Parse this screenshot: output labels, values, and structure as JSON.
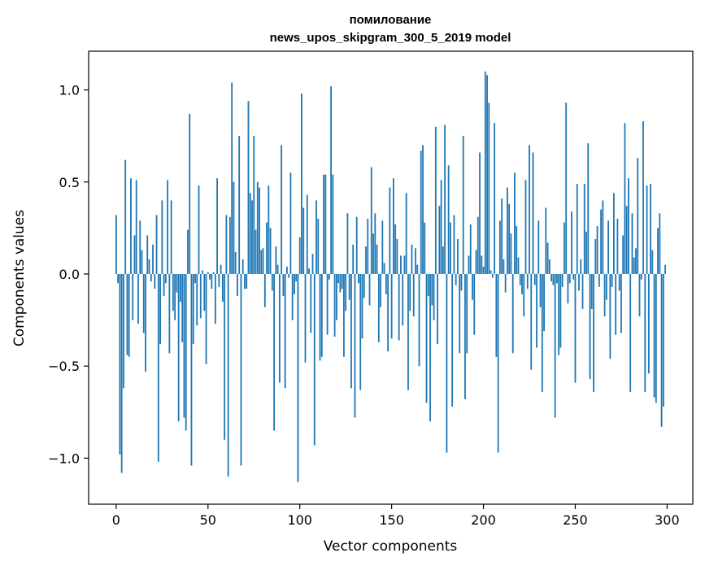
{
  "chart_data": {
    "type": "bar",
    "title": "помилование",
    "subtitle": "news_upos_skipgram_300_5_2019 model",
    "xlabel": "Vector components",
    "ylabel": "Components values",
    "xlim": [
      -15,
      314
    ],
    "ylim": [
      -1.25,
      1.21
    ],
    "xticks": [
      0,
      50,
      100,
      150,
      200,
      250,
      300
    ],
    "xtick_labels": [
      "0",
      "50",
      "100",
      "150",
      "200",
      "250",
      "300"
    ],
    "yticks": [
      -1.0,
      -0.5,
      0.0,
      0.5,
      1.0
    ],
    "ytick_labels": [
      "−1.0",
      "−0.5",
      "0.0",
      "0.5",
      "1.0"
    ],
    "grid": false,
    "bar_color": "#1f77b4",
    "x_start": 0,
    "values": [
      0.32,
      -0.05,
      -0.98,
      -1.08,
      -0.62,
      0.62,
      -0.44,
      -0.45,
      0.52,
      -0.25,
      0.21,
      0.51,
      -0.27,
      0.29,
      0.13,
      -0.32,
      -0.53,
      0.21,
      0.08,
      -0.04,
      0.16,
      -0.08,
      0.32,
      -1.02,
      -0.38,
      0.4,
      -0.12,
      -0.05,
      0.51,
      -0.43,
      0.4,
      -0.2,
      -0.25,
      -0.1,
      -0.8,
      -0.15,
      -0.37,
      -0.78,
      -0.85,
      0.24,
      0.87,
      -1.04,
      -0.38,
      -0.05,
      -0.28,
      0.48,
      -0.24,
      0.02,
      -0.2,
      -0.49,
      0.01,
      -0.03,
      -0.08,
      0.01,
      -0.27,
      0.52,
      -0.07,
      0.05,
      -0.15,
      -0.9,
      0.32,
      -1.1,
      0.31,
      1.04,
      0.5,
      0.12,
      -0.12,
      0.75,
      -1.04,
      0.08,
      -0.08,
      -0.08,
      0.94,
      0.44,
      0.4,
      0.75,
      0.24,
      0.5,
      0.47,
      0.13,
      0.14,
      -0.18,
      0.28,
      0.48,
      0.25,
      -0.09,
      -0.85,
      0.15,
      0.05,
      -0.59,
      0.7,
      -0.12,
      -0.62,
      0.04,
      -0.02,
      0.55,
      -0.25,
      -0.11,
      -0.04,
      -1.13,
      0.2,
      0.98,
      0.36,
      -0.48,
      0.43,
      0.03,
      -0.32,
      0.11,
      -0.93,
      0.4,
      0.3,
      -0.47,
      -0.45,
      0.54,
      0.54,
      -0.33,
      -0.03,
      1.02,
      0.54,
      -0.34,
      -0.25,
      -0.05,
      -0.1,
      -0.08,
      -0.45,
      -0.2,
      0.33,
      -0.14,
      -0.62,
      0.16,
      -0.78,
      0.31,
      -0.05,
      -0.63,
      -0.35,
      -0.13,
      0.15,
      0.3,
      -0.17,
      0.58,
      0.22,
      0.33,
      0.16,
      -0.37,
      -0.18,
      0.29,
      0.06,
      -0.11,
      -0.42,
      0.47,
      -0.35,
      0.52,
      0.27,
      0.19,
      -0.36,
      0.1,
      -0.28,
      0.1,
      0.44,
      -0.63,
      -0.2,
      0.16,
      -0.23,
      0.14,
      0.05,
      -0.5,
      0.67,
      0.7,
      0.28,
      -0.7,
      -0.12,
      -0.8,
      -0.17,
      -0.25,
      0.8,
      -0.38,
      0.37,
      0.51,
      0.15,
      0.81,
      -0.97,
      0.59,
      0.28,
      -0.72,
      0.32,
      -0.06,
      0.19,
      -0.43,
      -0.09,
      0.75,
      -0.68,
      -0.43,
      0.1,
      0.27,
      -0.14,
      -0.33,
      0.13,
      0.31,
      0.66,
      0.1,
      0.04,
      1.1,
      1.08,
      0.93,
      0.02,
      -0.02,
      0.82,
      -0.45,
      -0.97,
      0.29,
      0.41,
      0.08,
      -0.1,
      0.47,
      0.38,
      0.22,
      -0.43,
      0.55,
      0.26,
      0.09,
      -0.06,
      -0.11,
      -0.23,
      0.51,
      -0.08,
      0.7,
      -0.52,
      0.66,
      -0.06,
      -0.4,
      0.29,
      -0.18,
      -0.64,
      -0.31,
      0.36,
      0.17,
      0.08,
      -0.04,
      -0.06,
      -0.78,
      -0.05,
      -0.44,
      -0.4,
      -0.07,
      0.28,
      0.93,
      -0.16,
      -0.05,
      0.34,
      -0.03,
      -0.59,
      0.49,
      -0.09,
      0.08,
      -0.19,
      0.49,
      0.23,
      0.71,
      -0.57,
      -0.19,
      -0.64,
      0.19,
      0.26,
      -0.07,
      0.35,
      0.4,
      -0.23,
      -0.14,
      0.29,
      -0.46,
      -0.07,
      0.44,
      -0.33,
      0.3,
      -0.09,
      -0.32,
      0.21,
      0.82,
      0.37,
      0.52,
      -0.64,
      0.33,
      0.09,
      0.14,
      0.63,
      -0.23,
      -0.03,
      0.83,
      -0.64,
      0.48,
      -0.54,
      0.49,
      0.13,
      -0.67,
      -0.7,
      0.25,
      0.33,
      -0.83,
      -0.72,
      0.05
    ]
  }
}
